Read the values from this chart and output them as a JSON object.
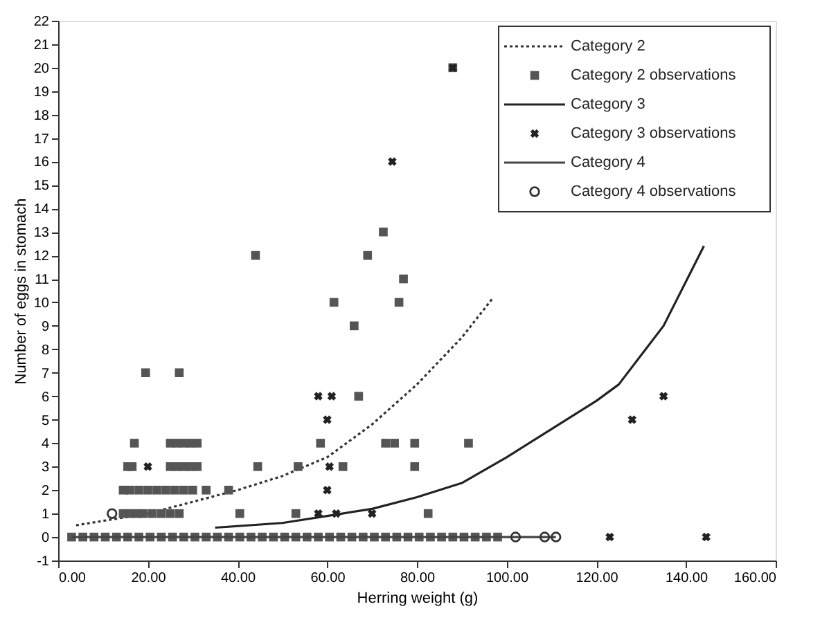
{
  "chart_data": {
    "type": "scatter",
    "xlabel": "Herring weight (g)",
    "ylabel": "Number of eggs in stomach",
    "xlim": [
      0,
      160
    ],
    "ylim": [
      -1,
      22
    ],
    "xticks": [
      {
        "value": 0,
        "label": "0.00"
      },
      {
        "value": 20,
        "label": "20.00"
      },
      {
        "value": 40,
        "label": "40.00"
      },
      {
        "value": 60,
        "label": "60.00"
      },
      {
        "value": 80,
        "label": "80.00"
      },
      {
        "value": 100,
        "label": "100.00"
      },
      {
        "value": 120,
        "label": "120.00"
      },
      {
        "value": 140,
        "label": "140.00"
      },
      {
        "value": 160,
        "label": "160.00"
      }
    ],
    "yticks": [
      -1,
      0,
      1,
      2,
      3,
      4,
      5,
      6,
      7,
      8,
      9,
      10,
      11,
      12,
      13,
      14,
      15,
      16,
      17,
      18,
      19,
      20,
      21,
      22
    ],
    "grid": false,
    "legend": "top right",
    "series": [
      {
        "name": "Category 2",
        "type": "line",
        "line_style": "dotted",
        "marker": "none",
        "color": "#333333",
        "x": [
          4,
          20,
          30,
          40,
          50,
          60,
          70,
          80,
          90,
          97
        ],
        "values": [
          0.5,
          1.0,
          1.5,
          2.0,
          2.6,
          3.4,
          4.8,
          6.5,
          8.5,
          10.2
        ]
      },
      {
        "name": "Category 2 observations",
        "type": "scatter",
        "marker": "square",
        "color": "#555555",
        "x": [
          19.5,
          27,
          44,
          88,
          72.5,
          69,
          77,
          61.5,
          76,
          66,
          67,
          17,
          25,
          26.5,
          28,
          29.5,
          31,
          58.5,
          73,
          75,
          79.5,
          91.5,
          15.5,
          16.5,
          25,
          26.5,
          28,
          29.5,
          31,
          44.5,
          53.5,
          63.5,
          79.5,
          14.5,
          16,
          18,
          20,
          22,
          24,
          26,
          28,
          30,
          33,
          38,
          14.5,
          16,
          17.5,
          19,
          21,
          23,
          25,
          27,
          40.5,
          53,
          82.5,
          3,
          5.5,
          8,
          10.5,
          13,
          15.5,
          18,
          20.5,
          23,
          25.5,
          28,
          30.5,
          33,
          35.5,
          38,
          40.5,
          43,
          45.5,
          48,
          50.5,
          53,
          55.5,
          58,
          60.5,
          63,
          65.5,
          68,
          70.5,
          73,
          75.5,
          78,
          80.5,
          83,
          85.5,
          88,
          90.5,
          93,
          95.5,
          98
        ],
        "values": [
          7,
          7,
          12,
          20,
          13,
          12,
          11,
          10,
          10,
          9,
          6,
          4,
          4,
          4,
          4,
          4,
          4,
          4,
          4,
          4,
          4,
          4,
          3,
          3,
          3,
          3,
          3,
          3,
          3,
          3,
          3,
          3,
          3,
          2,
          2,
          2,
          2,
          2,
          2,
          2,
          2,
          2,
          2,
          2,
          1,
          1,
          1,
          1,
          1,
          1,
          1,
          1,
          1,
          1,
          1,
          0,
          0,
          0,
          0,
          0,
          0,
          0,
          0,
          0,
          0,
          0,
          0,
          0,
          0,
          0,
          0,
          0,
          0,
          0,
          0,
          0,
          0,
          0,
          0,
          0,
          0,
          0,
          0,
          0,
          0,
          0,
          0,
          0,
          0,
          0,
          0,
          0,
          0,
          0
        ]
      },
      {
        "name": "Category 3",
        "type": "line",
        "line_style": "solid",
        "marker": "none",
        "color": "#222222",
        "x": [
          35,
          50,
          60,
          70,
          80,
          90,
          100,
          110,
          120,
          125,
          135,
          144
        ],
        "values": [
          0.4,
          0.6,
          0.9,
          1.2,
          1.7,
          2.3,
          3.4,
          4.6,
          5.8,
          6.5,
          9.0,
          12.4
        ]
      },
      {
        "name": "Category 3 observations",
        "type": "scatter",
        "marker": "cross",
        "color": "#222222",
        "x": [
          88,
          74.5,
          58,
          61,
          60,
          20,
          60.5,
          60,
          58,
          62,
          70,
          128,
          135,
          123,
          144.5
        ],
        "values": [
          20,
          16,
          6,
          6,
          5,
          3,
          3,
          2,
          1,
          1,
          1,
          5,
          6,
          0,
          0
        ]
      },
      {
        "name": "Category 4",
        "type": "line",
        "line_style": "solid",
        "marker": "none",
        "color": "#444444",
        "x": [
          3,
          111
        ],
        "values": [
          0,
          0
        ]
      },
      {
        "name": "Category 4 observations",
        "type": "scatter",
        "marker": "circle",
        "color": "#333333",
        "x": [
          12,
          102,
          108.5,
          111
        ],
        "values": [
          1,
          0,
          0,
          0
        ]
      }
    ]
  }
}
